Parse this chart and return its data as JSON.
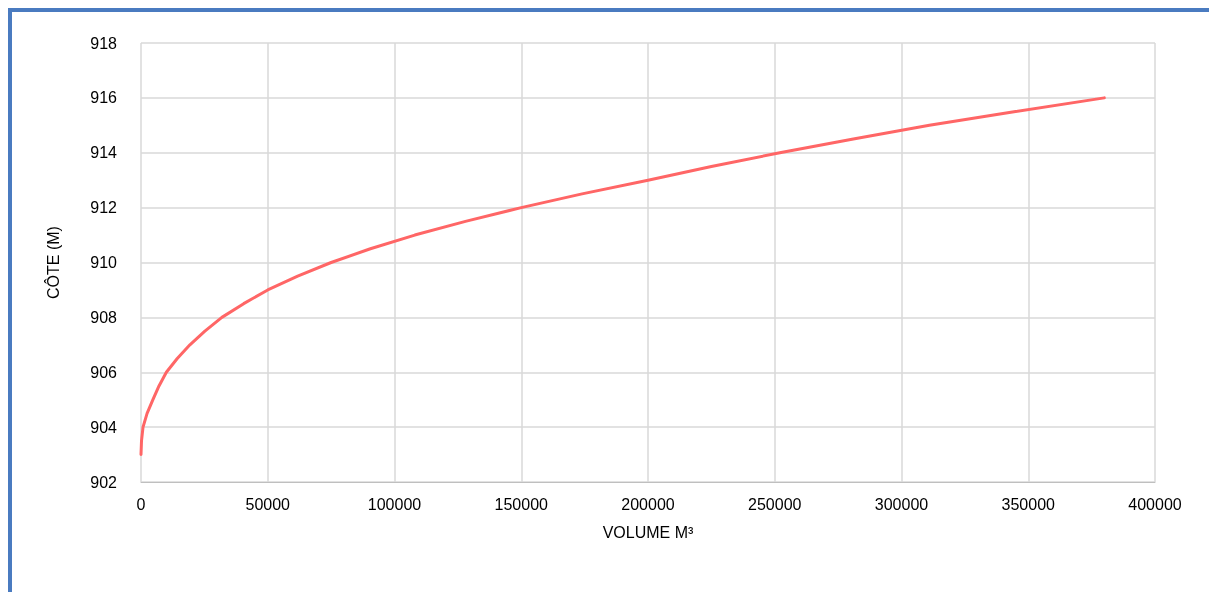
{
  "chart_data": {
    "type": "line",
    "xlabel": "VOLUME M³",
    "ylabel": "CÔTE (M)",
    "x": [
      0,
      200,
      800,
      2400,
      4700,
      7100,
      10000,
      14300,
      19300,
      25200,
      31900,
      40500,
      50000,
      61800,
      75000,
      90500,
      108000,
      128000,
      150000,
      174000,
      200000,
      225000,
      252000,
      281000,
      311000,
      345000,
      380000
    ],
    "series": [
      {
        "color": "#ff6666",
        "values": [
          903,
          903.5,
          904,
          904.5,
          905,
          905.5,
          906,
          906.5,
          907,
          907.5,
          908,
          908.5,
          909,
          909.5,
          910,
          910.5,
          911,
          911.5,
          912,
          912.5,
          913,
          913.5,
          914,
          914.5,
          915,
          915.5,
          916
        ]
      }
    ],
    "xlim": [
      0,
      400000
    ],
    "xticks": [
      0,
      50000,
      100000,
      150000,
      200000,
      250000,
      300000,
      350000,
      400000
    ],
    "ylim": [
      902,
      918
    ],
    "yticks": [
      902,
      904,
      906,
      908,
      910,
      912,
      914,
      916,
      918
    ],
    "grid": true,
    "marker": "none",
    "line_style": "solid"
  }
}
